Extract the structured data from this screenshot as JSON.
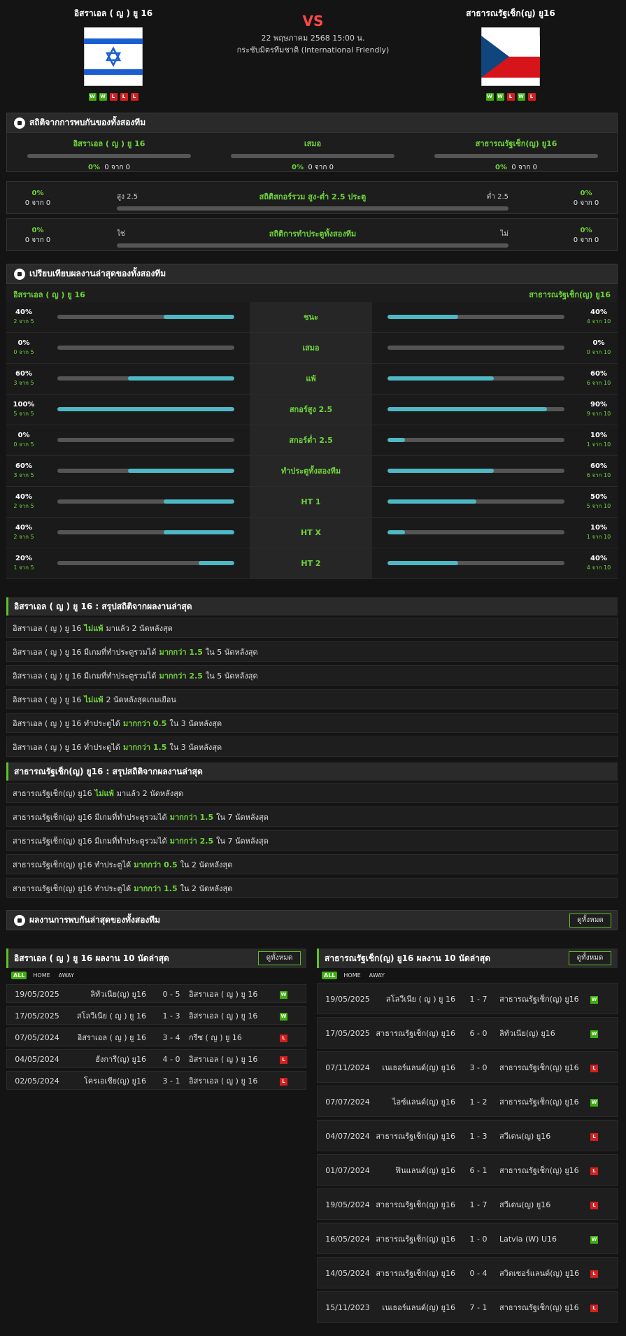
{
  "header": {
    "home_name": "อิสราเอล ( ญ ) ยู 16",
    "away_name": "สาธารณรัฐเช็ก(ญ) ยู16",
    "vs": "VS",
    "datetime": "22 พฤษภาคม 2568 15:00 น.",
    "competition": "กระชับมิตรทีมชาติ (International Friendly)",
    "home_form": [
      "W",
      "W",
      "L",
      "L",
      "L"
    ],
    "away_form": [
      "W",
      "W",
      "L",
      "W",
      "L"
    ],
    "colors": {
      "win": "#3fae0f",
      "loss": "#d41f1f",
      "accent": "#6fd43b",
      "bar": "#4fb8c5",
      "vs": "#ff4848"
    }
  },
  "h2h": {
    "title": "สถิติจากการพบกันของทั้งสองทีม",
    "cols": [
      {
        "label": "อิสราเอล ( ญ ) ยู 16",
        "pct": "0%",
        "count": "0 จาก 0"
      },
      {
        "label": "เสมอ",
        "pct": "0%",
        "count": "0 จาก 0"
      },
      {
        "label": "สาธารณรัฐเช็ก(ญ) ยู16",
        "pct": "0%",
        "count": "0 จาก 0"
      }
    ],
    "ou": {
      "left_pct": "0%",
      "left_count": "0 จาก 0",
      "label": "สถิติสกอร์รวม สูง-ต่ำ 2.5 ประตู",
      "side_left": "สูง 2.5",
      "side_right": "ต่ำ 2.5",
      "right_pct": "0%",
      "right_count": "0 จาก 0"
    },
    "btts": {
      "left_pct": "0%",
      "left_count": "0 จาก 0",
      "label": "สถิติการทำประตูทั้งสองทีม",
      "side_left": "ใช่",
      "side_right": "ไม่",
      "right_pct": "0%",
      "right_count": "0 จาก 0"
    }
  },
  "compare": {
    "title": "เปรียบเทียบผลงานล่าสุดของทั้งสองทีม",
    "home": "อิสราเอล ( ญ ) ยู 16",
    "away": "สาธารณรัฐเช็ก(ญ) ยู16",
    "rows": [
      {
        "label": "ชนะ",
        "hp": "40%",
        "hc": "2 จาก 5",
        "hv": 0.4,
        "ap": "40%",
        "ac": "4 จาก 10",
        "av": 0.4
      },
      {
        "label": "เสมอ",
        "hp": "0%",
        "hc": "0 จาก 5",
        "hv": 0,
        "ap": "0%",
        "ac": "0 จาก 10",
        "av": 0
      },
      {
        "label": "แพ้",
        "hp": "60%",
        "hc": "3 จาก 5",
        "hv": 0.6,
        "ap": "60%",
        "ac": "6 จาก 10",
        "av": 0.6
      },
      {
        "label": "สกอร์สูง 2.5",
        "hp": "100%",
        "hc": "5 จาก 5",
        "hv": 1,
        "ap": "90%",
        "ac": "9 จาก 10",
        "av": 0.9
      },
      {
        "label": "สกอร์ต่ำ 2.5",
        "hp": "0%",
        "hc": "0 จาก 5",
        "hv": 0,
        "ap": "10%",
        "ac": "1 จาก 10",
        "av": 0.1
      },
      {
        "label": "ทำประตูทั้งสองทีม",
        "hp": "60%",
        "hc": "3 จาก 5",
        "hv": 0.6,
        "ap": "60%",
        "ac": "6 จาก 10",
        "av": 0.6
      },
      {
        "label": "HT 1",
        "hp": "40%",
        "hc": "2 จาก 5",
        "hv": 0.4,
        "ap": "50%",
        "ac": "5 จาก 10",
        "av": 0.5
      },
      {
        "label": "HT X",
        "hp": "40%",
        "hc": "2 จาก 5",
        "hv": 0.4,
        "ap": "10%",
        "ac": "1 จาก 10",
        "av": 0.1
      },
      {
        "label": "HT 2",
        "hp": "20%",
        "hc": "1 จาก 5",
        "hv": 0.2,
        "ap": "40%",
        "ac": "4 จาก 10",
        "av": 0.4
      }
    ]
  },
  "home_summary": {
    "title": "อิสราเอล ( ญ ) ยู 16 : สรุปสถิติจากผลงานล่าสุด",
    "rows": [
      {
        "a": "อิสราเอล ( ญ ) ยู 16",
        "hl": "ไม่แพ้",
        "b": "มาแล้ว 2 นัดหลังสุด"
      },
      {
        "a": "อิสราเอล ( ญ ) ยู 16 มีเกมที่ทำประตูรวมได้",
        "hl": "มากกว่า 1.5",
        "b": "ใน 5 นัดหลังสุด"
      },
      {
        "a": "อิสราเอล ( ญ ) ยู 16 มีเกมที่ทำประตูรวมได้",
        "hl": "มากกว่า 2.5",
        "b": "ใน 5 นัดหลังสุด"
      },
      {
        "a": "อิสราเอล ( ญ ) ยู 16",
        "hl": "ไม่แพ้",
        "b": "2 นัดหลังสุดเกมเยือน"
      },
      {
        "a": "อิสราเอล ( ญ ) ยู 16 ทำประตูได้",
        "hl": "มากกว่า 0.5",
        "b": "ใน 3 นัดหลังสุด"
      },
      {
        "a": "อิสราเอล ( ญ ) ยู 16 ทำประตูได้",
        "hl": "มากกว่า 1.5",
        "b": "ใน 3 นัดหลังสุด"
      }
    ]
  },
  "away_summary": {
    "title": "สาธารณรัฐเช็ก(ญ) ยู16 : สรุปสถิติจากผลงานล่าสุด",
    "rows": [
      {
        "a": "สาธารณรัฐเช็ก(ญ) ยู16",
        "hl": "ไม่แพ้",
        "b": "มาแล้ว 2 นัดหลังสุด"
      },
      {
        "a": "สาธารณรัฐเช็ก(ญ) ยู16 มีเกมที่ทำประตูรวมได้",
        "hl": "มากกว่า 1.5",
        "b": "ใน 7 นัดหลังสุด"
      },
      {
        "a": "สาธารณรัฐเช็ก(ญ) ยู16 มีเกมที่ทำประตูรวมได้",
        "hl": "มากกว่า 2.5",
        "b": "ใน 7 นัดหลังสุด"
      },
      {
        "a": "สาธารณรัฐเช็ก(ญ) ยู16 ทำประตูได้",
        "hl": "มากกว่า 0.5",
        "b": "ใน 2 นัดหลังสุด"
      },
      {
        "a": "สาธารณรัฐเช็ก(ญ) ยู16 ทำประตูได้",
        "hl": "มากกว่า 1.5",
        "b": "ใน 2 นัดหลังสุด"
      }
    ]
  },
  "recent": {
    "title": "ผลงานการพบกันล่าสุดของทั้งสองทีม",
    "view_all": "ดูทั้งหมด",
    "tabs": [
      "ALL",
      "HOME",
      "AWAY"
    ],
    "home_title": "อิสราเอล ( ญ ) ยู 16 ผลงาน 10 นัดล่าสุด",
    "away_title": "สาธารณรัฐเช็ก(ญ) ยู16 ผลงาน 10 นัดล่าสุด",
    "home_matches": [
      {
        "date": "19/05/2025",
        "home": "ลิทัวเนีย(ญ) ยู16",
        "score": "0 - 5",
        "away": "อิสราเอล ( ญ ) ยู 16",
        "res": "W"
      },
      {
        "date": "17/05/2025",
        "home": "สโลวีเนีย ( ญ ) ยู 16",
        "score": "1 - 3",
        "away": "อิสราเอล ( ญ ) ยู 16",
        "res": "W"
      },
      {
        "date": "07/05/2024",
        "home": "อิสราเอล ( ญ ) ยู 16",
        "score": "3 - 4",
        "away": "กรีซ ( ญ ) ยู 16",
        "res": "L"
      },
      {
        "date": "04/05/2024",
        "home": "ฮังการี(ญ) ยู16",
        "score": "4 - 0",
        "away": "อิสราเอล ( ญ ) ยู 16",
        "res": "L"
      },
      {
        "date": "02/05/2024",
        "home": "โครเอเชีย(ญ) ยู16",
        "score": "3 - 1",
        "away": "อิสราเอล ( ญ ) ยู 16",
        "res": "L"
      }
    ],
    "away_matches": [
      {
        "date": "19/05/2025",
        "home": "สโลวีเนีย ( ญ ) ยู 16",
        "score": "1 - 7",
        "away": "สาธารณรัฐเช็ก(ญ) ยู16",
        "res": "W"
      },
      {
        "date": "17/05/2025",
        "home": "สาธารณรัฐเช็ก(ญ) ยู16",
        "score": "6 - 0",
        "away": "ลิทัวเนีย(ญ) ยู16",
        "res": "W"
      },
      {
        "date": "07/11/2024",
        "home": "เนเธอร์แลนด์(ญ) ยู16",
        "score": "3 - 0",
        "away": "สาธารณรัฐเช็ก(ญ) ยู16",
        "res": "L"
      },
      {
        "date": "07/07/2024",
        "home": "ไอซ์แลนด์(ญ) ยู16",
        "score": "1 - 2",
        "away": "สาธารณรัฐเช็ก(ญ) ยู16",
        "res": "W"
      },
      {
        "date": "04/07/2024",
        "home": "สาธารณรัฐเช็ก(ญ) ยู16",
        "score": "1 - 3",
        "away": "สวีเดน(ญ) ยู16",
        "res": "L"
      },
      {
        "date": "01/07/2024",
        "home": "ฟินแลนด์(ญ) ยู16",
        "score": "6 - 1",
        "away": "สาธารณรัฐเช็ก(ญ) ยู16",
        "res": "L"
      },
      {
        "date": "19/05/2024",
        "home": "สาธารณรัฐเช็ก(ญ) ยู16",
        "score": "1 - 7",
        "away": "สวีเดน(ญ) ยู16",
        "res": "L"
      },
      {
        "date": "16/05/2024",
        "home": "สาธารณรัฐเช็ก(ญ) ยู16",
        "score": "1 - 0",
        "away": "Latvia (W) U16",
        "res": "W"
      },
      {
        "date": "14/05/2024",
        "home": "สาธารณรัฐเช็ก(ญ) ยู16",
        "score": "0 - 4",
        "away": "สวิตเซอร์แลนด์(ญ) ยู16",
        "res": "L"
      },
      {
        "date": "15/11/2023",
        "home": "เนเธอร์แลนด์(ญ) ยู16",
        "score": "7 - 1",
        "away": "สาธารณรัฐเช็ก(ญ) ยู16",
        "res": "L"
      }
    ]
  }
}
